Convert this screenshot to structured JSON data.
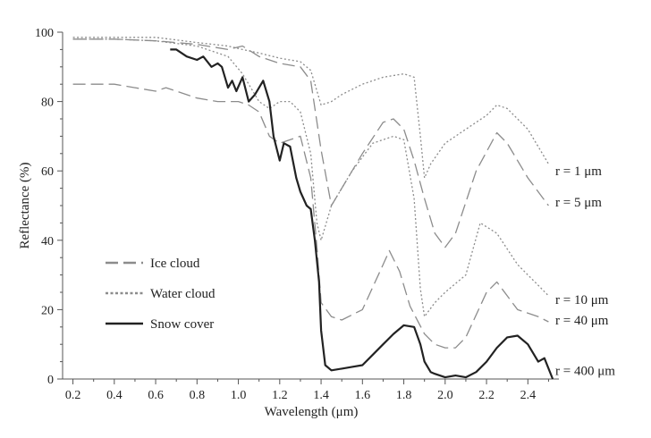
{
  "chart_data": {
    "type": "line",
    "xlabel": "Wavelength (μm)",
    "ylabel": "Reflectance (%)",
    "xlim": [
      0.15,
      2.55
    ],
    "ylim": [
      0,
      100
    ],
    "xticks": [
      "0.2",
      "0.4",
      "0.6",
      "0.8",
      "1.0",
      "1.2",
      "1.4",
      "1.6",
      "1.8",
      "2.0",
      "2.2",
      "2.4"
    ],
    "yticks": [
      "0",
      "20",
      "40",
      "60",
      "80",
      "100"
    ],
    "grid": false,
    "legend": {
      "placement": "lower-left",
      "entries": [
        {
          "label": "Ice cloud",
          "style": "dashed"
        },
        {
          "label": "Water cloud",
          "style": "dotted"
        },
        {
          "label": "Snow cover",
          "style": "solid"
        }
      ]
    },
    "radius_labels": [
      {
        "text": "r = 1 μm",
        "y": 60
      },
      {
        "text": "r = 5 μm",
        "y": 51
      },
      {
        "text": "r = 10 μm",
        "y": 23
      },
      {
        "text": "r = 40 μm",
        "y": 17
      },
      {
        "text": "r = 400 μm",
        "y": 2.5
      }
    ],
    "series": [
      {
        "style": "dotted",
        "color": "#8c8c8c",
        "points": [
          [
            0.2,
            98.5
          ],
          [
            0.4,
            98.5
          ],
          [
            0.6,
            98.5
          ],
          [
            0.8,
            97
          ],
          [
            0.95,
            96
          ],
          [
            1.02,
            95
          ],
          [
            1.1,
            94
          ],
          [
            1.2,
            92.5
          ],
          [
            1.3,
            91.5
          ],
          [
            1.35,
            89
          ],
          [
            1.4,
            79
          ],
          [
            1.45,
            80
          ],
          [
            1.5,
            82
          ],
          [
            1.6,
            85
          ],
          [
            1.7,
            87
          ],
          [
            1.8,
            88
          ],
          [
            1.85,
            87
          ],
          [
            1.88,
            70
          ],
          [
            1.9,
            58
          ],
          [
            1.93,
            62
          ],
          [
            2.0,
            68
          ],
          [
            2.1,
            72
          ],
          [
            2.2,
            76
          ],
          [
            2.25,
            79
          ],
          [
            2.3,
            78
          ],
          [
            2.4,
            72
          ],
          [
            2.5,
            62
          ]
        ]
      },
      {
        "style": "dashed",
        "color": "#8c8c8c",
        "points": [
          [
            0.2,
            98
          ],
          [
            0.4,
            98
          ],
          [
            0.6,
            97.5
          ],
          [
            0.8,
            96.5
          ],
          [
            0.95,
            95
          ],
          [
            1.02,
            96
          ],
          [
            1.1,
            93
          ],
          [
            1.2,
            91
          ],
          [
            1.3,
            90
          ],
          [
            1.35,
            86
          ],
          [
            1.4,
            66
          ],
          [
            1.45,
            50
          ],
          [
            1.5,
            55
          ],
          [
            1.6,
            65
          ],
          [
            1.7,
            74
          ],
          [
            1.75,
            75
          ],
          [
            1.8,
            72
          ],
          [
            1.85,
            63
          ],
          [
            1.9,
            52
          ],
          [
            1.95,
            42
          ],
          [
            2.0,
            38
          ],
          [
            2.05,
            42
          ],
          [
            2.15,
            60
          ],
          [
            2.25,
            71
          ],
          [
            2.3,
            68
          ],
          [
            2.4,
            58
          ],
          [
            2.5,
            50
          ]
        ]
      },
      {
        "style": "dotted",
        "color": "#8c8c8c",
        "points": [
          [
            0.2,
            98
          ],
          [
            0.4,
            98
          ],
          [
            0.6,
            97.5
          ],
          [
            0.8,
            96
          ],
          [
            0.95,
            93
          ],
          [
            1.02,
            88
          ],
          [
            1.1,
            80
          ],
          [
            1.15,
            78
          ],
          [
            1.2,
            80
          ],
          [
            1.25,
            80
          ],
          [
            1.3,
            77
          ],
          [
            1.35,
            65
          ],
          [
            1.38,
            45
          ],
          [
            1.4,
            40
          ],
          [
            1.45,
            50
          ],
          [
            1.55,
            60
          ],
          [
            1.65,
            68
          ],
          [
            1.75,
            70
          ],
          [
            1.8,
            69
          ],
          [
            1.85,
            52
          ],
          [
            1.88,
            26
          ],
          [
            1.9,
            18
          ],
          [
            1.95,
            22
          ],
          [
            2.0,
            25
          ],
          [
            2.1,
            30
          ],
          [
            2.17,
            45
          ],
          [
            2.25,
            42
          ],
          [
            2.35,
            33
          ],
          [
            2.45,
            27
          ],
          [
            2.5,
            24
          ]
        ]
      },
      {
        "style": "dashed",
        "color": "#8c8c8c",
        "points": [
          [
            0.2,
            85
          ],
          [
            0.4,
            85
          ],
          [
            0.5,
            84
          ],
          [
            0.6,
            83
          ],
          [
            0.65,
            84
          ],
          [
            0.7,
            83
          ],
          [
            0.8,
            81
          ],
          [
            0.9,
            80
          ],
          [
            1.0,
            80
          ],
          [
            1.05,
            79
          ],
          [
            1.1,
            77
          ],
          [
            1.15,
            70
          ],
          [
            1.2,
            68
          ],
          [
            1.3,
            70
          ],
          [
            1.35,
            58
          ],
          [
            1.38,
            38
          ],
          [
            1.4,
            22
          ],
          [
            1.45,
            18
          ],
          [
            1.5,
            17
          ],
          [
            1.6,
            20
          ],
          [
            1.7,
            33
          ],
          [
            1.73,
            37
          ],
          [
            1.78,
            31
          ],
          [
            1.83,
            21
          ],
          [
            1.9,
            13
          ],
          [
            1.95,
            10
          ],
          [
            2.0,
            9
          ],
          [
            2.05,
            9
          ],
          [
            2.1,
            12
          ],
          [
            2.2,
            25
          ],
          [
            2.25,
            28
          ],
          [
            2.3,
            24
          ],
          [
            2.35,
            20
          ],
          [
            2.45,
            18
          ],
          [
            2.5,
            16.5
          ]
        ]
      },
      {
        "style": "solid",
        "color": "#222222",
        "points": [
          [
            0.67,
            95
          ],
          [
            0.7,
            95
          ],
          [
            0.75,
            93
          ],
          [
            0.8,
            92
          ],
          [
            0.83,
            93
          ],
          [
            0.87,
            90
          ],
          [
            0.9,
            91
          ],
          [
            0.92,
            90
          ],
          [
            0.95,
            84
          ],
          [
            0.97,
            86
          ],
          [
            0.99,
            83
          ],
          [
            1.02,
            87
          ],
          [
            1.05,
            80
          ],
          [
            1.08,
            82
          ],
          [
            1.1,
            84
          ],
          [
            1.12,
            86
          ],
          [
            1.15,
            80
          ],
          [
            1.17,
            70
          ],
          [
            1.2,
            63
          ],
          [
            1.22,
            68
          ],
          [
            1.25,
            67
          ],
          [
            1.28,
            58
          ],
          [
            1.3,
            54
          ],
          [
            1.33,
            50
          ],
          [
            1.35,
            49
          ],
          [
            1.37,
            40
          ],
          [
            1.39,
            28
          ],
          [
            1.4,
            14
          ],
          [
            1.42,
            4
          ],
          [
            1.45,
            2.5
          ],
          [
            1.5,
            3
          ],
          [
            1.55,
            3.5
          ],
          [
            1.6,
            4
          ],
          [
            1.65,
            7
          ],
          [
            1.7,
            10
          ],
          [
            1.75,
            13
          ],
          [
            1.8,
            15.5
          ],
          [
            1.85,
            15
          ],
          [
            1.88,
            10
          ],
          [
            1.9,
            5
          ],
          [
            1.93,
            2
          ],
          [
            1.95,
            1.5
          ],
          [
            2.0,
            0.5
          ],
          [
            2.05,
            1
          ],
          [
            2.1,
            0.5
          ],
          [
            2.15,
            2
          ],
          [
            2.2,
            5
          ],
          [
            2.25,
            9
          ],
          [
            2.3,
            12
          ],
          [
            2.35,
            12.5
          ],
          [
            2.4,
            10
          ],
          [
            2.45,
            5
          ],
          [
            2.48,
            6
          ],
          [
            2.52,
            0
          ]
        ]
      }
    ]
  }
}
